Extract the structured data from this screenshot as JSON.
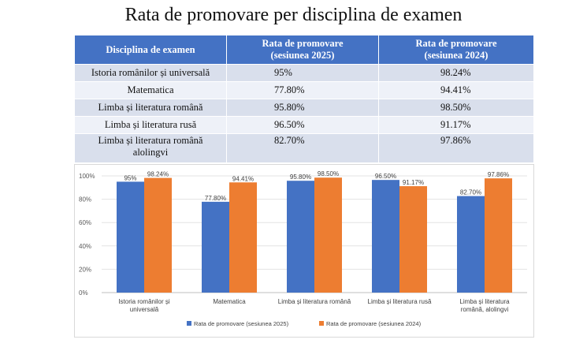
{
  "page": {
    "title": "Rata de promovare per disciplina de examen"
  },
  "table": {
    "headers": [
      "Disciplina de examen",
      "Rata de promovare (sesiunea 2025)",
      "Rata de promovare (sesiunea 2024)"
    ],
    "header_lines": [
      [
        "Disciplina de examen"
      ],
      [
        "Rata de promovare",
        "(sesiunea 2025)"
      ],
      [
        "Rata de promovare",
        "(sesiunea 2024)"
      ]
    ],
    "rows": [
      {
        "discipline_lines": [
          "Istoria românilor și universală"
        ],
        "r2025": "95%",
        "r2024": "98.24%"
      },
      {
        "discipline_lines": [
          "Matematica"
        ],
        "r2025": "77.80%",
        "r2024": "94.41%"
      },
      {
        "discipline_lines": [
          "Limba și literatura română"
        ],
        "r2025": "95.80%",
        "r2024": "98.50%"
      },
      {
        "discipline_lines": [
          "Limba și literatura rusă"
        ],
        "r2025": "96.50%",
        "r2024": "91.17%"
      },
      {
        "discipline_lines": [
          "Limba și literatura română",
          "alolingvi"
        ],
        "r2025": "82.70%",
        "r2024": "97.86%"
      }
    ]
  },
  "colors": {
    "header_bg": "#4472c4",
    "series_2025": "#4472c4",
    "series_2024": "#ed7d31"
  },
  "chart_data": {
    "type": "bar",
    "categories": [
      "Istoria românilor și universală",
      "Matematica",
      "Limba și literatura română",
      "Limba și literatura rusă",
      "Limba și literatura română, alolingvi"
    ],
    "category_lines": [
      [
        "Istoria românilor și",
        "universală"
      ],
      [
        "Matematica"
      ],
      [
        "Limba și literatura română"
      ],
      [
        "Limba și literatura rusă"
      ],
      [
        "Limba și literatura",
        "română, alolingvi"
      ]
    ],
    "series": [
      {
        "name": "Rata de promovare (sesiunea 2025)",
        "values": [
          95,
          77.8,
          95.8,
          96.5,
          82.7
        ],
        "labels": [
          "95%",
          "77.80%",
          "95.80%",
          "96.50%",
          "82.70%"
        ],
        "color": "#4472c4"
      },
      {
        "name": "Rata de promovare (sesiunea 2024)",
        "values": [
          98.24,
          94.41,
          98.5,
          91.17,
          97.86
        ],
        "labels": [
          "98.24%",
          "94.41%",
          "98.50%",
          "91.17%",
          "97.86%"
        ],
        "color": "#ed7d31"
      }
    ],
    "yticks": [
      "0%",
      "20%",
      "40%",
      "60%",
      "80%",
      "100%"
    ],
    "ylim": [
      0,
      100
    ],
    "grid": true,
    "legend_position": "bottom",
    "title": "",
    "xlabel": "",
    "ylabel": ""
  }
}
